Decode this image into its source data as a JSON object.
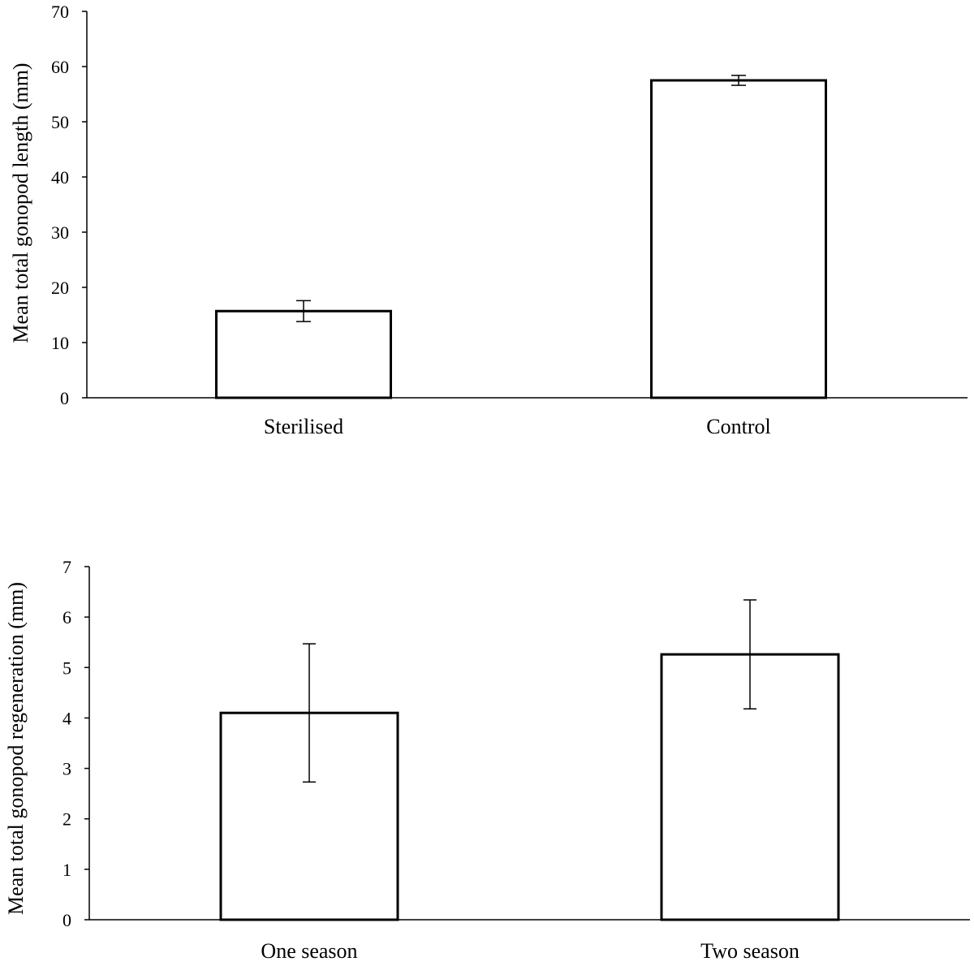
{
  "chart_data": [
    {
      "type": "bar",
      "title": "",
      "xlabel": "",
      "ylabel": "Mean  total gonopod length (mm)",
      "ylim": [
        0,
        70
      ],
      "yticks": [
        "0",
        "10",
        "20",
        "30",
        "40",
        "50",
        "60",
        "70"
      ],
      "categories": [
        "Sterilised",
        "Control"
      ],
      "values": [
        15.7,
        57.5
      ],
      "errors": [
        1.9,
        0.9
      ],
      "grid": false,
      "legend": "none"
    },
    {
      "type": "bar",
      "title": "",
      "xlabel": "",
      "ylabel": "Mean  total gonopod regeneration (mm)",
      "ylim": [
        0,
        7
      ],
      "yticks": [
        "0",
        "1",
        "2",
        "3",
        "4",
        "5",
        "6",
        "7"
      ],
      "categories": [
        "One season",
        "Two season"
      ],
      "values": [
        4.1,
        5.26
      ],
      "errors": [
        1.37,
        1.08
      ],
      "grid": false,
      "legend": "none"
    }
  ]
}
